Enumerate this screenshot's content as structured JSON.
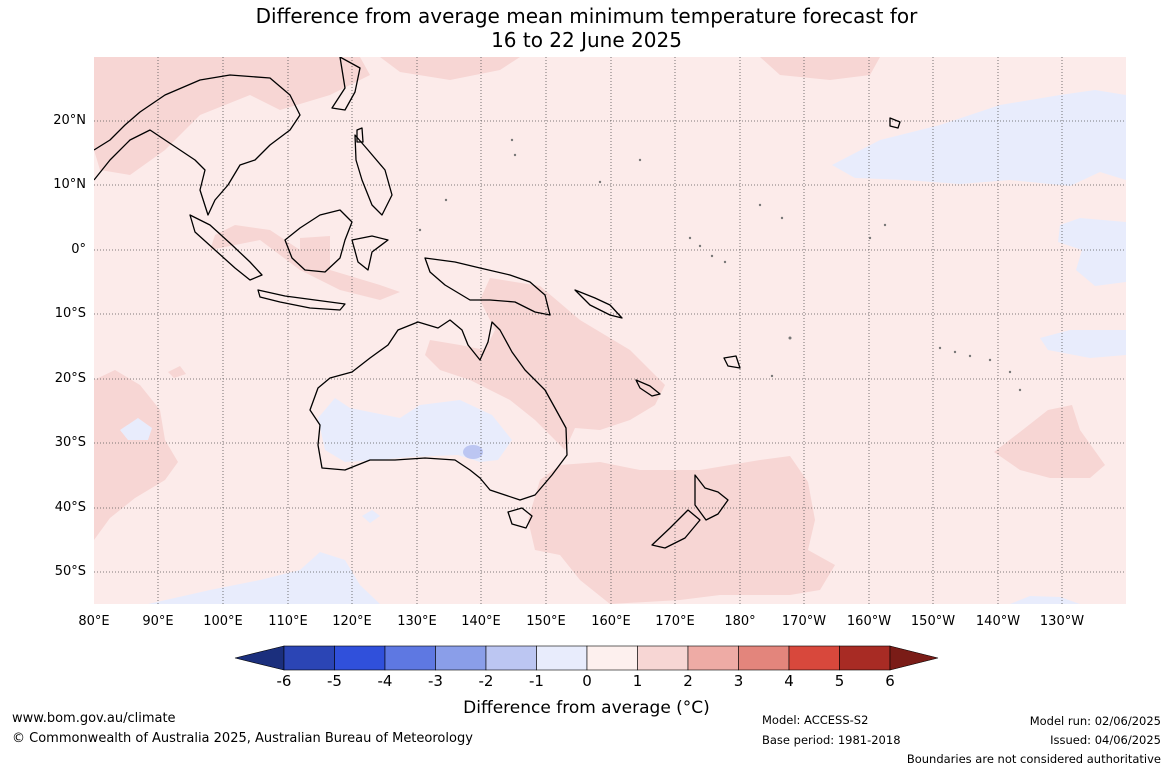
{
  "title_line1": "Difference from average mean minimum temperature forecast for",
  "title_line2": "16 to 22 June 2025",
  "lat_labels": [
    "20°N",
    "10°N",
    "0°",
    "10°S",
    "20°S",
    "30°S",
    "40°S",
    "50°S"
  ],
  "lon_labels": [
    "80°E",
    "90°E",
    "100°E",
    "110°E",
    "120°E",
    "130°E",
    "140°E",
    "150°E",
    "160°E",
    "170°E",
    "180°",
    "170°W",
    "160°W",
    "150°W",
    "140°W",
    "130°W"
  ],
  "colorbar": {
    "ticks": [
      "-6",
      "-5",
      "-4",
      "-3",
      "-2",
      "-1",
      "0",
      "1",
      "2",
      "3",
      "4",
      "5",
      "6"
    ],
    "colors": [
      "#1b2f7d",
      "#2b45b5",
      "#3050db",
      "#5e78e2",
      "#8a9ee9",
      "#bcc6f2",
      "#e8ecfc",
      "#fdf0ee",
      "#f7d6d4",
      "#eeaba5",
      "#e3857c",
      "#d8483c",
      "#a82b24",
      "#7a1c17"
    ],
    "label": "Difference from average (°C)"
  },
  "footer": {
    "website": "www.bom.gov.au/climate",
    "copyright": "© Commonwealth of Australia 2025, Australian Bureau of Meteorology",
    "model": "Model: ACCESS-S2",
    "base_period": "Base period: 1981-2018",
    "model_run": "Model run: 02/06/2025",
    "issued": "Issued: 04/06/2025",
    "disclaimer": "Boundaries are not considered authoritative"
  }
}
